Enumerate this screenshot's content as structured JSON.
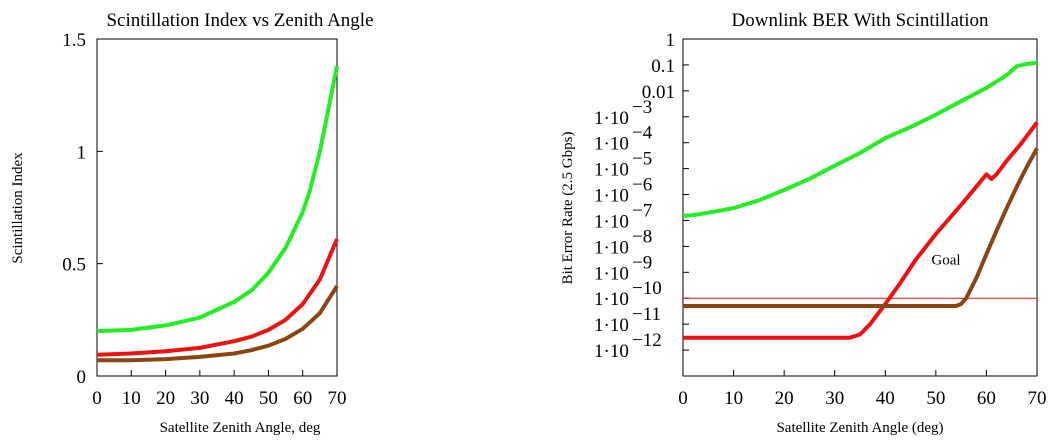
{
  "chart_data": [
    {
      "type": "line",
      "title": "Scintillation Index vs Zenith Angle",
      "xlabel": "Satellite Zenith Angle, deg",
      "ylabel": "Scintillation Index",
      "xlim": [
        0,
        70
      ],
      "ylim": [
        0,
        1.5
      ],
      "xticks": [
        0,
        10,
        20,
        30,
        40,
        50,
        60,
        70
      ],
      "xtick_labels": [
        "0",
        "10",
        "20",
        "30",
        "40",
        "50",
        "60",
        "70"
      ],
      "yticks": [
        0,
        0.5,
        1,
        1.5
      ],
      "ytick_labels": [
        "0",
        "0.5",
        "1",
        "1.5"
      ],
      "grid": false,
      "series": [
        {
          "color": "#22ee22",
          "x": [
            0,
            10,
            20,
            30,
            40,
            45,
            50,
            55,
            60,
            62,
            65,
            67,
            70
          ],
          "y": [
            0.2,
            0.205,
            0.225,
            0.26,
            0.33,
            0.38,
            0.46,
            0.57,
            0.73,
            0.82,
            1.0,
            1.15,
            1.38
          ]
        },
        {
          "color": "#ee1111",
          "x": [
            0,
            10,
            20,
            30,
            40,
            45,
            50,
            55,
            60,
            65,
            70
          ],
          "y": [
            0.095,
            0.1,
            0.11,
            0.125,
            0.155,
            0.175,
            0.205,
            0.25,
            0.32,
            0.43,
            0.61
          ]
        },
        {
          "color": "#8b4513",
          "x": [
            0,
            10,
            20,
            30,
            40,
            45,
            50,
            55,
            60,
            65,
            70
          ],
          "y": [
            0.07,
            0.07,
            0.075,
            0.085,
            0.1,
            0.115,
            0.135,
            0.165,
            0.21,
            0.28,
            0.4
          ]
        }
      ]
    },
    {
      "type": "line",
      "title": "Downlink BER With Scintillation",
      "xlabel": "Satellite Zenith Angle (deg)",
      "ylabel": "Bit Error Rate (2.5 Gbps)",
      "xlim": [
        0,
        70
      ],
      "ylim": [
        1e-13,
        1
      ],
      "yscale": "log",
      "xticks": [
        0,
        10,
        20,
        30,
        40,
        50,
        60,
        70
      ],
      "xtick_labels": [
        "0",
        "10",
        "20",
        "30",
        "40",
        "50",
        "60",
        "70"
      ],
      "yticks": [
        1,
        0.1,
        0.01,
        0.001,
        0.0001,
        1e-05,
        1e-06,
        1e-07,
        1e-08,
        1e-09,
        1e-10,
        1e-11,
        1e-12
      ],
      "ytick_labels": [
        {
          "base": "1",
          "exp": ""
        },
        {
          "base": "0.1",
          "exp": ""
        },
        {
          "base": "0.01",
          "exp": ""
        },
        {
          "base": "1·10",
          "exp": "−3"
        },
        {
          "base": "1·10",
          "exp": "−4"
        },
        {
          "base": "1·10",
          "exp": "−5"
        },
        {
          "base": "1·10",
          "exp": "−6"
        },
        {
          "base": "1·10",
          "exp": "−7"
        },
        {
          "base": "1·10",
          "exp": "−8"
        },
        {
          "base": "1·10",
          "exp": "−9"
        },
        {
          "base": "1·10",
          "exp": "−10"
        },
        {
          "base": "1·10",
          "exp": "−11"
        },
        {
          "base": "1·10",
          "exp": "−12"
        }
      ],
      "annotation": {
        "text": "Goal",
        "x": 52,
        "y": 2e-09
      },
      "goal_line": {
        "y": 1e-10,
        "color": "#ee1111"
      },
      "grid": false,
      "series": [
        {
          "color": "#22ee22",
          "x": [
            0,
            2,
            5,
            10,
            15,
            20,
            25,
            30,
            35,
            40,
            45,
            50,
            55,
            60,
            64,
            66,
            68,
            70
          ],
          "y": [
            1.5e-07,
            1.6e-07,
            2e-07,
            3e-07,
            6e-07,
            1.5e-06,
            4e-06,
            1.3e-05,
            4e-05,
            0.00015,
            0.0004,
            0.0012,
            0.004,
            0.013,
            0.04,
            0.09,
            0.11,
            0.12
          ]
        },
        {
          "color": "#ee1111",
          "x": [
            0,
            33,
            35,
            37,
            40,
            43,
            46,
            50,
            55,
            58,
            60,
            61,
            62,
            64,
            67,
            70
          ],
          "y": [
            3e-12,
            3e-12,
            4e-12,
            1e-11,
            6e-11,
            4e-10,
            3e-09,
            3e-08,
            4e-07,
            2e-06,
            6e-06,
            4e-06,
            6e-06,
            2e-05,
            0.0001,
            0.0006
          ]
        },
        {
          "color": "#8b4513",
          "x": [
            0,
            54,
            55,
            56,
            58,
            60,
            62,
            64,
            66,
            68,
            70
          ],
          "y": [
            5e-11,
            5e-11,
            6e-11,
            1e-10,
            6e-10,
            5e-09,
            4e-08,
            3e-07,
            2e-06,
            1.2e-05,
            6e-05
          ]
        }
      ]
    }
  ]
}
